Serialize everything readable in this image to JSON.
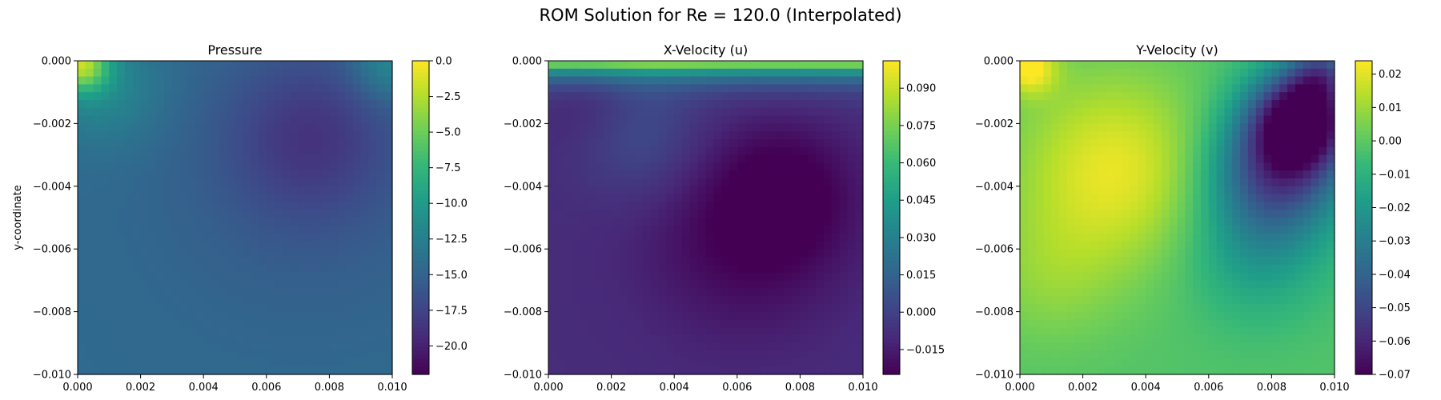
{
  "figure": {
    "suptitle": "ROM Solution for Re = 120.0 (Interpolated)"
  },
  "colormap": [
    "#440154",
    "#482878",
    "#3e4989",
    "#31688e",
    "#26828e",
    "#1f9e89",
    "#35b779",
    "#6ece58",
    "#b5de2b",
    "#fde725"
  ],
  "chart_data": [
    {
      "type": "heatmap",
      "title": "Pressure",
      "xlabel": "",
      "ylabel": "y-coordinate",
      "xlim": [
        0.0,
        0.01
      ],
      "ylim": [
        -0.01,
        0.0
      ],
      "xticks": [
        "0.000",
        "0.002",
        "0.004",
        "0.006",
        "0.008",
        "0.010"
      ],
      "yticks": [
        "0.000",
        "−0.002",
        "−0.004",
        "−0.006",
        "−0.008",
        "−0.010"
      ],
      "colorbar": {
        "range": [
          -22.0,
          0.0
        ],
        "ticks": [
          0.0,
          -2.5,
          -5.0,
          -7.5,
          -10.0,
          -12.5,
          -15.0,
          -17.5,
          -20.0
        ],
        "tick_labels": [
          "0.0",
          "−2.5",
          "−5.0",
          "−7.5",
          "−10.0",
          "−12.5",
          "−15.0",
          "−17.5",
          "−20.0"
        ]
      },
      "field": {
        "base": -14.5,
        "features": [
          {
            "x": 0.0001,
            "y": -0.0001,
            "value": -4.0,
            "radius": 0.0006
          },
          {
            "x": 0.0008,
            "y": -0.0008,
            "value": -11.5,
            "radius": 0.0013
          },
          {
            "x": 0.0074,
            "y": -0.0024,
            "value": -17.5,
            "radius": 0.0018
          },
          {
            "x": 0.0072,
            "y": -0.0036,
            "value": -15.8,
            "radius": 0.0032
          },
          {
            "x": 0.0099,
            "y": -0.0001,
            "value": -11.0,
            "radius": 0.0008
          }
        ]
      }
    },
    {
      "type": "heatmap",
      "title": "X-Velocity (u)",
      "xlabel": "",
      "ylabel": "",
      "xlim": [
        0.0,
        0.01
      ],
      "ylim": [
        -0.01,
        0.0
      ],
      "xticks": [
        "0.000",
        "0.002",
        "0.004",
        "0.006",
        "0.008",
        "0.010"
      ],
      "yticks": [
        "0.000",
        "−0.002",
        "−0.004",
        "−0.006",
        "−0.008",
        "−0.010"
      ],
      "colorbar": {
        "range": [
          -0.025,
          0.101
        ],
        "ticks": [
          0.09,
          0.075,
          0.06,
          0.045,
          0.03,
          0.015,
          0.0,
          -0.015
        ],
        "tick_labels": [
          "0.090",
          "0.075",
          "0.060",
          "0.045",
          "0.030",
          "0.015",
          "0.000",
          "−0.015"
        ]
      },
      "field": {
        "base": -0.009,
        "lid": {
          "value": 0.1,
          "decay": 0.00045
        },
        "features": [
          {
            "x": 0.0012,
            "y": -0.001,
            "value": -0.016,
            "radius": 0.0011
          },
          {
            "x": 0.0062,
            "y": -0.0056,
            "value": -0.024,
            "radius": 0.0022
          },
          {
            "x": 0.0076,
            "y": -0.0042,
            "value": -0.024,
            "radius": 0.0015
          },
          {
            "x": 0.003,
            "y": -0.0025,
            "value": 0.004,
            "radius": 0.0014
          }
        ]
      }
    },
    {
      "type": "heatmap",
      "title": "Y-Velocity (v)",
      "xlabel": "",
      "ylabel": "",
      "xlim": [
        0.0,
        0.01
      ],
      "ylim": [
        -0.01,
        0.0
      ],
      "xticks": [
        "0.000",
        "0.002",
        "0.004",
        "0.006",
        "0.008",
        "0.010"
      ],
      "yticks": [
        "0.000",
        "−0.002",
        "−0.004",
        "−0.006",
        "−0.008",
        "−0.010"
      ],
      "colorbar": {
        "range": [
          -0.07,
          0.024
        ],
        "ticks": [
          0.02,
          0.01,
          0.0,
          -0.01,
          -0.02,
          -0.03,
          -0.04,
          -0.05,
          -0.06,
          -0.07
        ],
        "tick_labels": [
          "0.02",
          "0.01",
          "0.00",
          "−0.01",
          "−0.02",
          "−0.03",
          "−0.04",
          "−0.05",
          "−0.06",
          "−0.07"
        ]
      },
      "field": {
        "base": -0.002,
        "features": [
          {
            "x": 0.0003,
            "y": -0.0002,
            "value": 0.024,
            "radius": 0.0006
          },
          {
            "x": 0.003,
            "y": -0.0035,
            "value": 0.021,
            "radius": 0.0022
          },
          {
            "x": 0.0009,
            "y": -0.007,
            "value": 0.006,
            "radius": 0.0016
          },
          {
            "x": 0.009,
            "y": -0.0018,
            "value": -0.068,
            "radius": 0.0011
          },
          {
            "x": 0.0082,
            "y": -0.0034,
            "value": -0.05,
            "radius": 0.0015
          },
          {
            "x": 0.0075,
            "y": -0.006,
            "value": -0.018,
            "radius": 0.0016
          },
          {
            "x": 0.0096,
            "y": -0.0003,
            "value": -0.03,
            "radius": 0.0007
          }
        ]
      }
    }
  ]
}
